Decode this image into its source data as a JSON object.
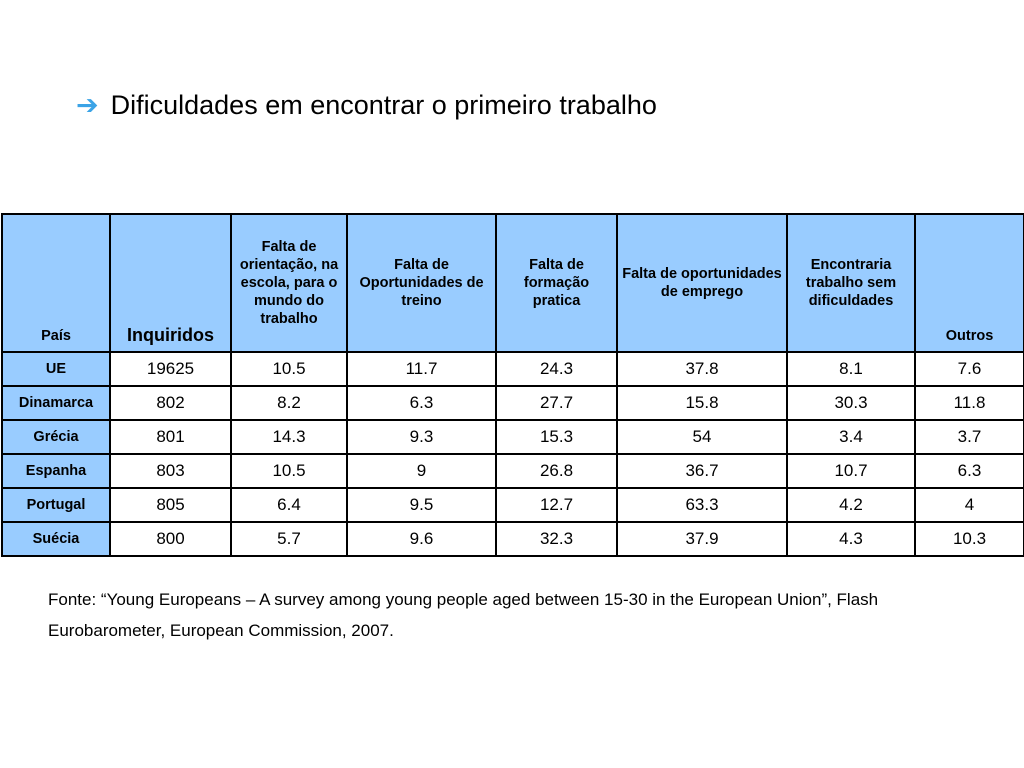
{
  "header": {
    "arrow_icon": "arrow-right-icon",
    "title": "Dificuldades em encontrar o primeiro trabalho"
  },
  "table": {
    "columns": [
      "País",
      "Inquiridos",
      "Falta de orientação, na escola, para o mundo do trabalho",
      "Falta de Oportunidades de treino",
      "Falta de formação pratica",
      "Falta de oportunidades de emprego",
      "Encontraria trabalho sem dificuldades",
      "Outros"
    ],
    "rows": [
      [
        "UE",
        "19625",
        "10.5",
        "11.7",
        "24.3",
        "37.8",
        "8.1",
        "7.6"
      ],
      [
        "Dinamarca",
        "802",
        "8.2",
        "6.3",
        "27.7",
        "15.8",
        "30.3",
        "11.8"
      ],
      [
        "Grécia",
        "801",
        "14.3",
        "9.3",
        "15.3",
        "54",
        "3.4",
        "3.7"
      ],
      [
        "Espanha",
        "803",
        "10.5",
        "9",
        "26.8",
        "36.7",
        "10.7",
        "6.3"
      ],
      [
        "Portugal",
        "805",
        "6.4",
        "9.5",
        "12.7",
        "63.3",
        "4.2",
        "4"
      ],
      [
        "Suécia",
        "800",
        "5.7",
        "9.6",
        "32.3",
        "37.9",
        "4.3",
        "10.3"
      ]
    ]
  },
  "source": "Fonte: “Young Europeans – A survey among young people aged between 15-30 in the European Union”, Flash Eurobarometer, European Commission, 2007.",
  "colors": {
    "header_bg": "#99ccff",
    "arrow": "#3ba3e6"
  }
}
